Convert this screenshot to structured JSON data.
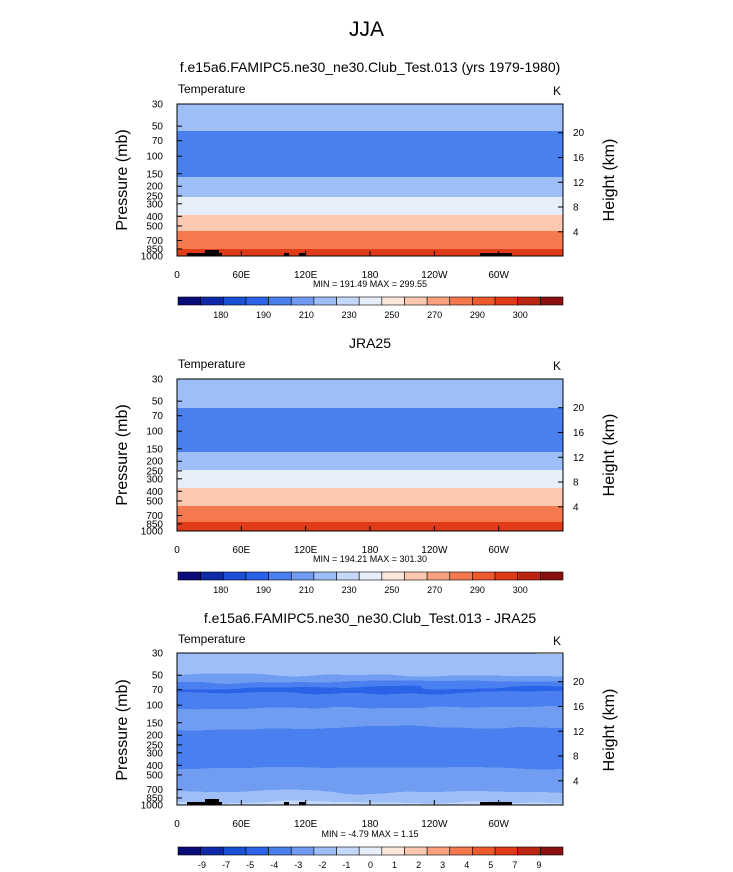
{
  "figure_title": "JJA",
  "colors": {
    "temperature_levels": [
      "#0a0a78",
      "#0f2aa8",
      "#1a4fd6",
      "#2a62e8",
      "#4a7fee",
      "#6f9cf2",
      "#9dbef7",
      "#c4d8fa",
      "#e6eefa",
      "#fde7da",
      "#fcc8b0",
      "#f9a07e",
      "#f4794f",
      "#ef5a2c",
      "#e03b18",
      "#bb2512",
      "#8a1010"
    ],
    "difference_levels": [
      "#0a0a78",
      "#0f2aa8",
      "#1a4fd6",
      "#2a62e8",
      "#4a7fee",
      "#6f9cf2",
      "#9dbef7",
      "#c4d8fa",
      "#e6eefa",
      "#fde7da",
      "#fcc8b0",
      "#f9a07e",
      "#f4794f",
      "#ef5a2c",
      "#e03b18",
      "#bb2512",
      "#8a1010"
    ],
    "terrain": "#000000"
  },
  "chart_data": [
    {
      "type": "heatmap",
      "name": "model",
      "title": "f.e15a6.FAMIPC5.ne30_ne30.Club_Test.013 (yrs 1979-1980)",
      "variable_label": "Temperature",
      "units_label": "K",
      "ylabel": "Pressure (mb)",
      "y2label": "Height (km)",
      "pressure_ticks": [
        "30",
        "50",
        "70",
        "100",
        "150",
        "200",
        "250",
        "300",
        "400",
        "500",
        "700",
        "850",
        "1000"
      ],
      "height_ticks": [
        "4",
        "8",
        "12",
        "16",
        "20"
      ],
      "x_ticks": [
        "0",
        "60E",
        "120E",
        "180",
        "120W",
        "60W"
      ],
      "min_max_text": "MIN = 191.49  MAX = 299.55",
      "min": 191.49,
      "max": 299.55,
      "colorbar_labels": [
        "180",
        "190",
        "210",
        "230",
        "250",
        "270",
        "290",
        "300"
      ],
      "profile_pressure": [
        30,
        50,
        70,
        100,
        150,
        200,
        250,
        300,
        400,
        500,
        700,
        850,
        1000
      ],
      "profile_values": [
        226,
        214,
        202,
        199,
        205,
        217,
        228,
        236,
        251,
        263,
        279,
        289,
        297
      ]
    },
    {
      "type": "heatmap",
      "name": "observation",
      "title": "JRA25",
      "variable_label": "Temperature",
      "units_label": "K",
      "ylabel": "Pressure (mb)",
      "y2label": "Height (km)",
      "pressure_ticks": [
        "30",
        "50",
        "70",
        "100",
        "150",
        "200",
        "250",
        "300",
        "400",
        "500",
        "700",
        "850",
        "1000"
      ],
      "height_ticks": [
        "4",
        "8",
        "12",
        "16",
        "20"
      ],
      "x_ticks": [
        "0",
        "60E",
        "120E",
        "180",
        "120W",
        "60W"
      ],
      "min_max_text": "MIN = 194.21  MAX = 301.30",
      "min": 194.21,
      "max": 301.3,
      "colorbar_labels": [
        "180",
        "190",
        "210",
        "230",
        "250",
        "270",
        "290",
        "300"
      ],
      "profile_pressure": [
        30,
        50,
        70,
        100,
        150,
        200,
        250,
        300,
        400,
        500,
        700,
        850,
        1000
      ],
      "profile_values": [
        227,
        216,
        205,
        201,
        207,
        218,
        229,
        237,
        252,
        264,
        281,
        291,
        299
      ]
    },
    {
      "type": "heatmap",
      "name": "difference",
      "title": "f.e15a6.FAMIPC5.ne30_ne30.Club_Test.013 - JRA25",
      "variable_label": "Temperature",
      "units_label": "K",
      "ylabel": "Pressure (mb)",
      "y2label": "Height (km)",
      "pressure_ticks": [
        "30",
        "50",
        "70",
        "100",
        "150",
        "200",
        "250",
        "300",
        "400",
        "500",
        "700",
        "850",
        "1000"
      ],
      "height_ticks": [
        "4",
        "8",
        "12",
        "16",
        "20"
      ],
      "x_ticks": [
        "0",
        "60E",
        "120E",
        "180",
        "120W",
        "60W"
      ],
      "min_max_text": "MIN = -4.79  MAX =  1.15",
      "min": -4.79,
      "max": 1.15,
      "colorbar_labels": [
        "-9",
        "-7",
        "-5",
        "-4",
        "-3",
        "-2",
        "-1",
        "0",
        "1",
        "2",
        "3",
        "4",
        "5",
        "7",
        "9"
      ],
      "profile_pressure": [
        30,
        50,
        70,
        100,
        150,
        200,
        250,
        300,
        400,
        500,
        700,
        850,
        1000
      ],
      "profile_values": [
        -1.2,
        -1.8,
        -4.2,
        -3.1,
        -2.6,
        -3.3,
        -3.4,
        -3.0,
        -3.2,
        -2.7,
        -2.2,
        -1.6,
        -0.8
      ]
    }
  ]
}
